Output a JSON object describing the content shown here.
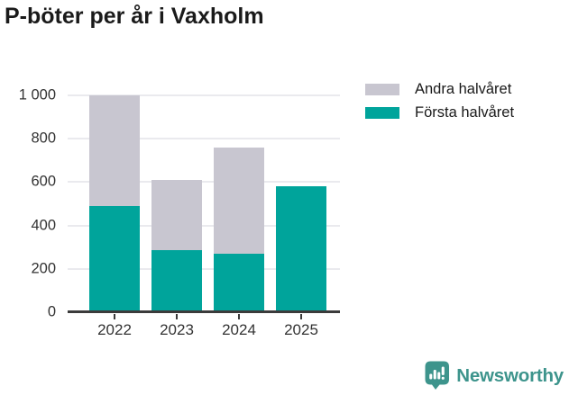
{
  "chart_data": {
    "type": "bar",
    "stacked": true,
    "title": "P-böter per år i Vaxholm",
    "categories": [
      "2022",
      "2023",
      "2024",
      "2025"
    ],
    "series": [
      {
        "name": "Första halvåret",
        "color": "#00a49b",
        "values": [
          490,
          285,
          270,
          583
        ]
      },
      {
        "name": "Andra halvåret",
        "color": "#c8c6d0",
        "values": [
          510,
          325,
          490,
          0
        ]
      }
    ],
    "totals": [
      1000,
      610,
      760,
      583
    ],
    "legend": [
      {
        "label": "Andra halvåret",
        "color": "#c8c6d0"
      },
      {
        "label": "Första halvåret",
        "color": "#00a49b"
      }
    ],
    "legend_position": "top-right",
    "grid": "horizontal",
    "ylim": [
      0,
      1000
    ],
    "yticks": [
      {
        "value": 0,
        "label": "0"
      },
      {
        "value": 200,
        "label": "200"
      },
      {
        "value": 400,
        "label": "400"
      },
      {
        "value": 600,
        "label": "600"
      },
      {
        "value": 800,
        "label": "800"
      },
      {
        "value": 1000,
        "label": "1 000"
      }
    ],
    "xlabel": "",
    "ylabel": ""
  },
  "branding": {
    "logo_text": "Newsworthy",
    "logo_color": "#3d948c",
    "icon": "newsworthy-speech-bubble-bar-chart-icon"
  }
}
